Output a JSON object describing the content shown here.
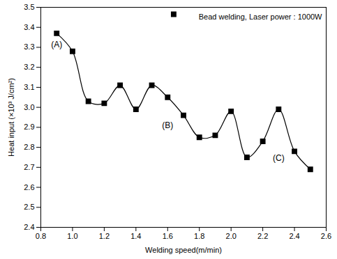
{
  "chart_data": {
    "type": "line",
    "x_label": "Welding speed(m/min)",
    "y_label": "Heat input (×10³ J/cm²)",
    "series": [
      {
        "name": "Bead welding, Laser power : 1000W",
        "color": "#000000",
        "marker": "square",
        "line_style": "solid",
        "x": [
          0.9,
          1.0,
          1.1,
          1.2,
          1.3,
          1.4,
          1.5,
          1.6,
          1.7,
          1.8,
          1.9,
          2.0,
          2.1,
          2.2,
          2.3,
          2.4,
          2.5
        ],
        "values": [
          3.37,
          3.28,
          3.03,
          3.02,
          3.11,
          2.99,
          3.11,
          3.05,
          2.96,
          2.85,
          2.86,
          2.98,
          2.75,
          2.83,
          2.99,
          2.78,
          2.69
        ]
      }
    ],
    "annotations": [
      "(A)",
      "(B)",
      "(C)"
    ],
    "xlim": [
      0.8,
      2.6
    ],
    "xticks": [
      0.8,
      {
        "value": 1,
        "label": "1.0"
      },
      1.2,
      1.4,
      1.6,
      1.8,
      {
        "value": 2,
        "label": "2.0"
      },
      2.2,
      2.4,
      2.6
    ],
    "ylim": [
      2.4,
      3.5
    ],
    "yticks": [
      2.4,
      2.5,
      2.6,
      2.7,
      2.8,
      2.9,
      {
        "value": 3,
        "label": "3.0"
      },
      3.1,
      3.2,
      3.3,
      3.4,
      3.5
    ],
    "grid": false,
    "legend": "top-right"
  }
}
